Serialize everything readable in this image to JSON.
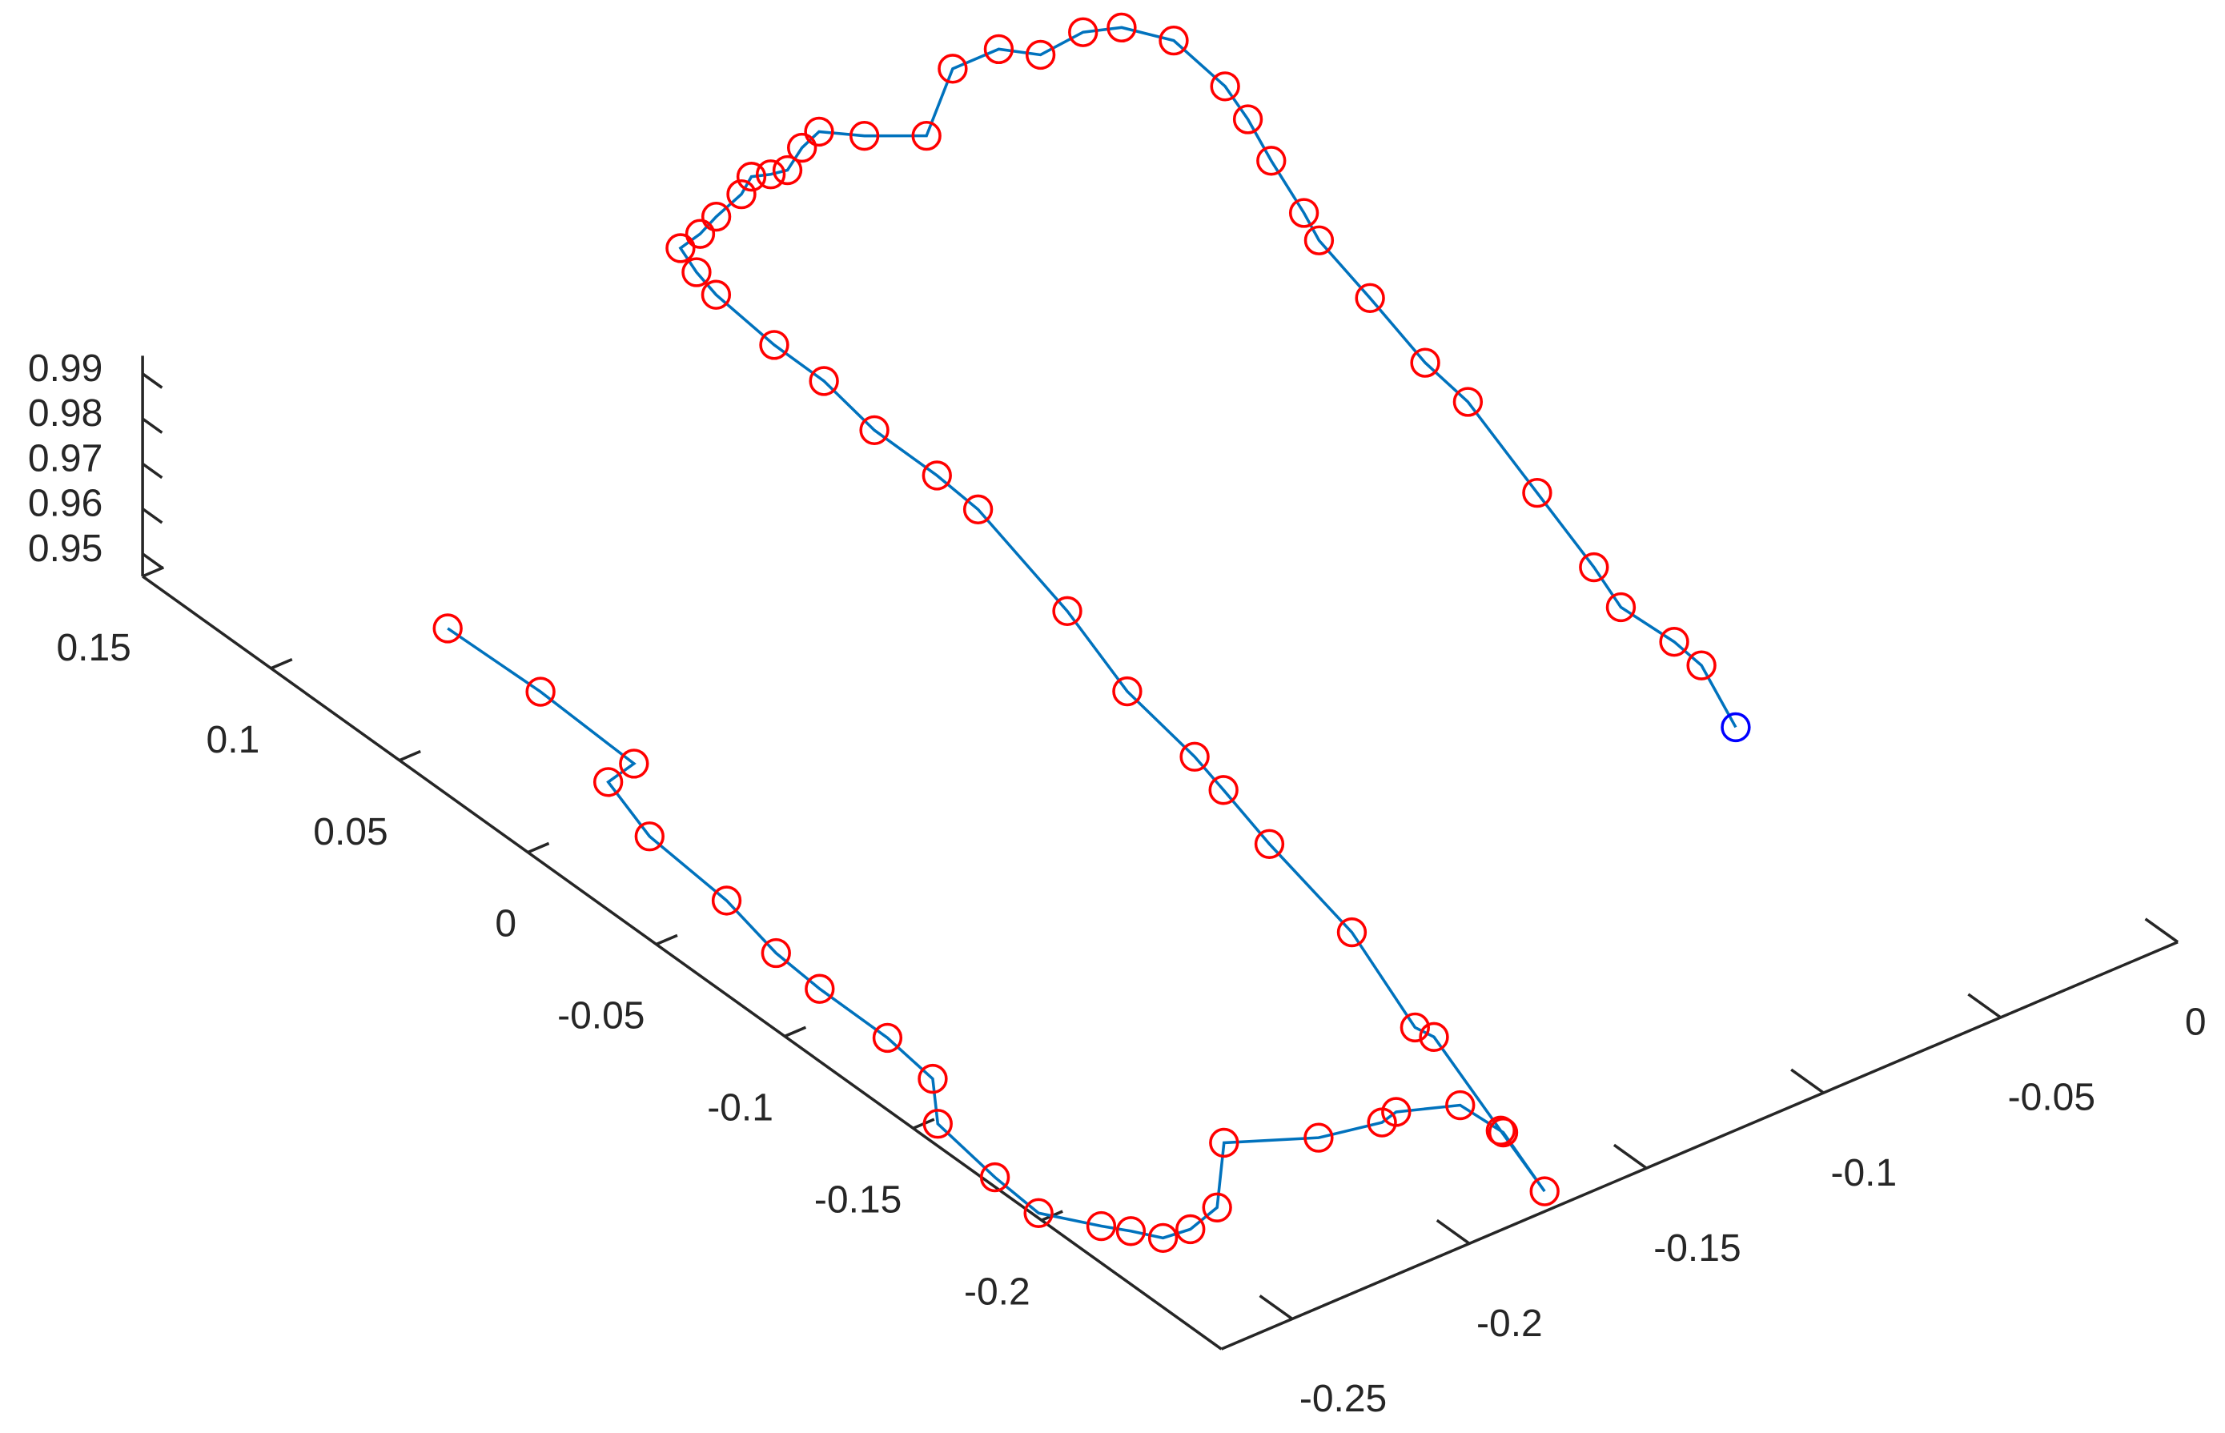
{
  "chart_data": {
    "type": "line3d",
    "xlim": [
      -0.27,
      0.15
    ],
    "ylim": [
      -0.27,
      0
    ],
    "zlim": [
      0.945,
      0.994
    ],
    "xticks": [
      0.15,
      0.1,
      0.05,
      0,
      -0.05,
      -0.1,
      -0.15,
      -0.2
    ],
    "yticks": [
      -0.25,
      -0.2,
      -0.15,
      -0.1,
      -0.05,
      0
    ],
    "zticks": [
      0.95,
      0.96,
      0.97,
      0.98,
      0.99
    ],
    "series": [
      {
        "color": "#0072bd",
        "marker_color": "#ff0000",
        "end_marker_color": "#0000ff",
        "x": [
          0.045,
          0.013,
          -0.022,
          -0.023,
          -0.046,
          -0.076,
          -0.098,
          -0.115,
          -0.14,
          -0.159,
          -0.172,
          -0.197,
          -0.214,
          -0.226,
          -0.232,
          -0.239,
          -0.24,
          -0.238,
          -0.22,
          -0.232,
          -0.236,
          -0.236,
          -0.243,
          -0.257,
          -0.28,
          -0.256,
          -0.219,
          -0.213,
          -0.176,
          -0.137,
          -0.115,
          -0.101,
          -0.072,
          -0.039,
          0.004,
          0.02,
          0.043,
          0.064,
          0.082,
          0.106,
          0.115,
          0.124,
          0.126,
          0.128,
          0.132,
          0.135,
          0.133,
          0.132,
          0.136,
          0.139,
          0.131,
          0.122,
          0.138,
          0.138,
          0.13,
          0.13,
          0.126,
          0.114,
          0.094,
          0.081,
          0.065,
          0.044,
          0.034,
          0.01,
          -0.017,
          -0.035,
          -0.073,
          -0.102,
          -0.118,
          -0.136,
          -0.148,
          -0.171
        ],
        "y": [
          -0.26,
          -0.257,
          -0.256,
          -0.264,
          -0.269,
          -0.269,
          -0.271,
          -0.271,
          -0.27,
          -0.271,
          -0.279,
          -0.281,
          -0.281,
          -0.272,
          -0.268,
          -0.264,
          -0.257,
          -0.248,
          -0.233,
          -0.215,
          -0.2,
          -0.196,
          -0.183,
          -0.181,
          -0.186,
          -0.181,
          -0.173,
          -0.174,
          -0.165,
          -0.16,
          -0.157,
          -0.155,
          -0.153,
          -0.146,
          -0.14,
          -0.14,
          -0.141,
          -0.14,
          -0.141,
          -0.14,
          -0.139,
          -0.137,
          -0.13,
          -0.124,
          -0.114,
          -0.109,
          -0.105,
          -0.101,
          -0.094,
          -0.087,
          -0.08,
          -0.069,
          -0.05,
          -0.037,
          -0.031,
          -0.019,
          -0.011,
          -0.005,
          -0.005,
          -0.008,
          -0.013,
          -0.019,
          -0.022,
          -0.025,
          -0.029,
          -0.03,
          -0.038,
          -0.043,
          -0.047,
          -0.045,
          -0.046,
          -0.053
        ],
        "z": [
          0.973,
          0.971,
          0.969,
          0.968,
          0.967,
          0.965,
          0.963,
          0.962,
          0.961,
          0.96,
          0.958,
          0.957,
          0.956,
          0.955,
          0.955,
          0.955,
          0.955,
          0.956,
          0.958,
          0.958,
          0.958,
          0.959,
          0.959,
          0.958,
          0.956,
          0.958,
          0.961,
          0.961,
          0.964,
          0.966,
          0.968,
          0.969,
          0.971,
          0.973,
          0.976,
          0.977,
          0.978,
          0.98,
          0.981,
          0.982,
          0.983,
          0.984,
          0.984,
          0.985,
          0.985,
          0.986,
          0.986,
          0.986,
          0.987,
          0.987,
          0.987,
          0.987,
          0.989,
          0.989,
          0.989,
          0.99,
          0.99,
          0.99,
          0.988,
          0.987,
          0.986,
          0.985,
          0.984,
          0.982,
          0.98,
          0.979,
          0.977,
          0.974,
          0.973,
          0.972,
          0.972,
          0.97
        ]
      }
    ]
  }
}
